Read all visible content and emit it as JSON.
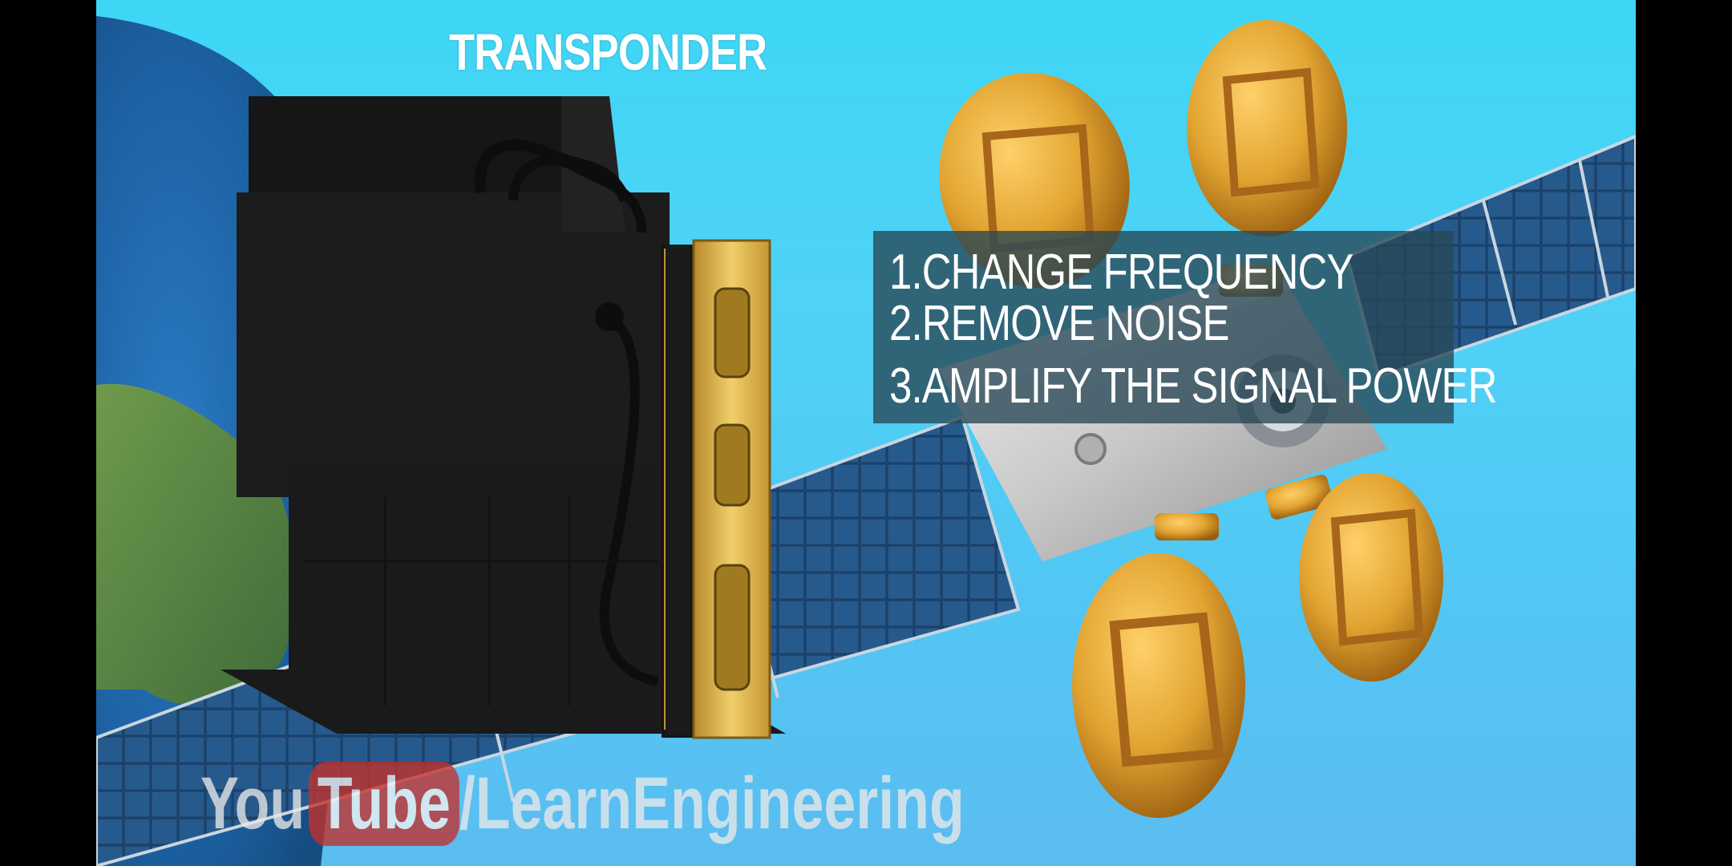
{
  "title": "TRANSPONDER",
  "functions": [
    "1.CHANGE FREQUENCY",
    "2.REMOVE NOISE",
    "3.AMPLIFY THE SIGNAL POWER"
  ],
  "watermark": {
    "you": "You",
    "tube": "Tube",
    "channel": "/LearnEngineering"
  },
  "colors": {
    "sky": "#4fd2f6",
    "box_bg": "rgba(40,70,85,0.78)",
    "gold": "#e2a431",
    "panel": "#1f4a78",
    "youtube_red": "#c4302b"
  }
}
